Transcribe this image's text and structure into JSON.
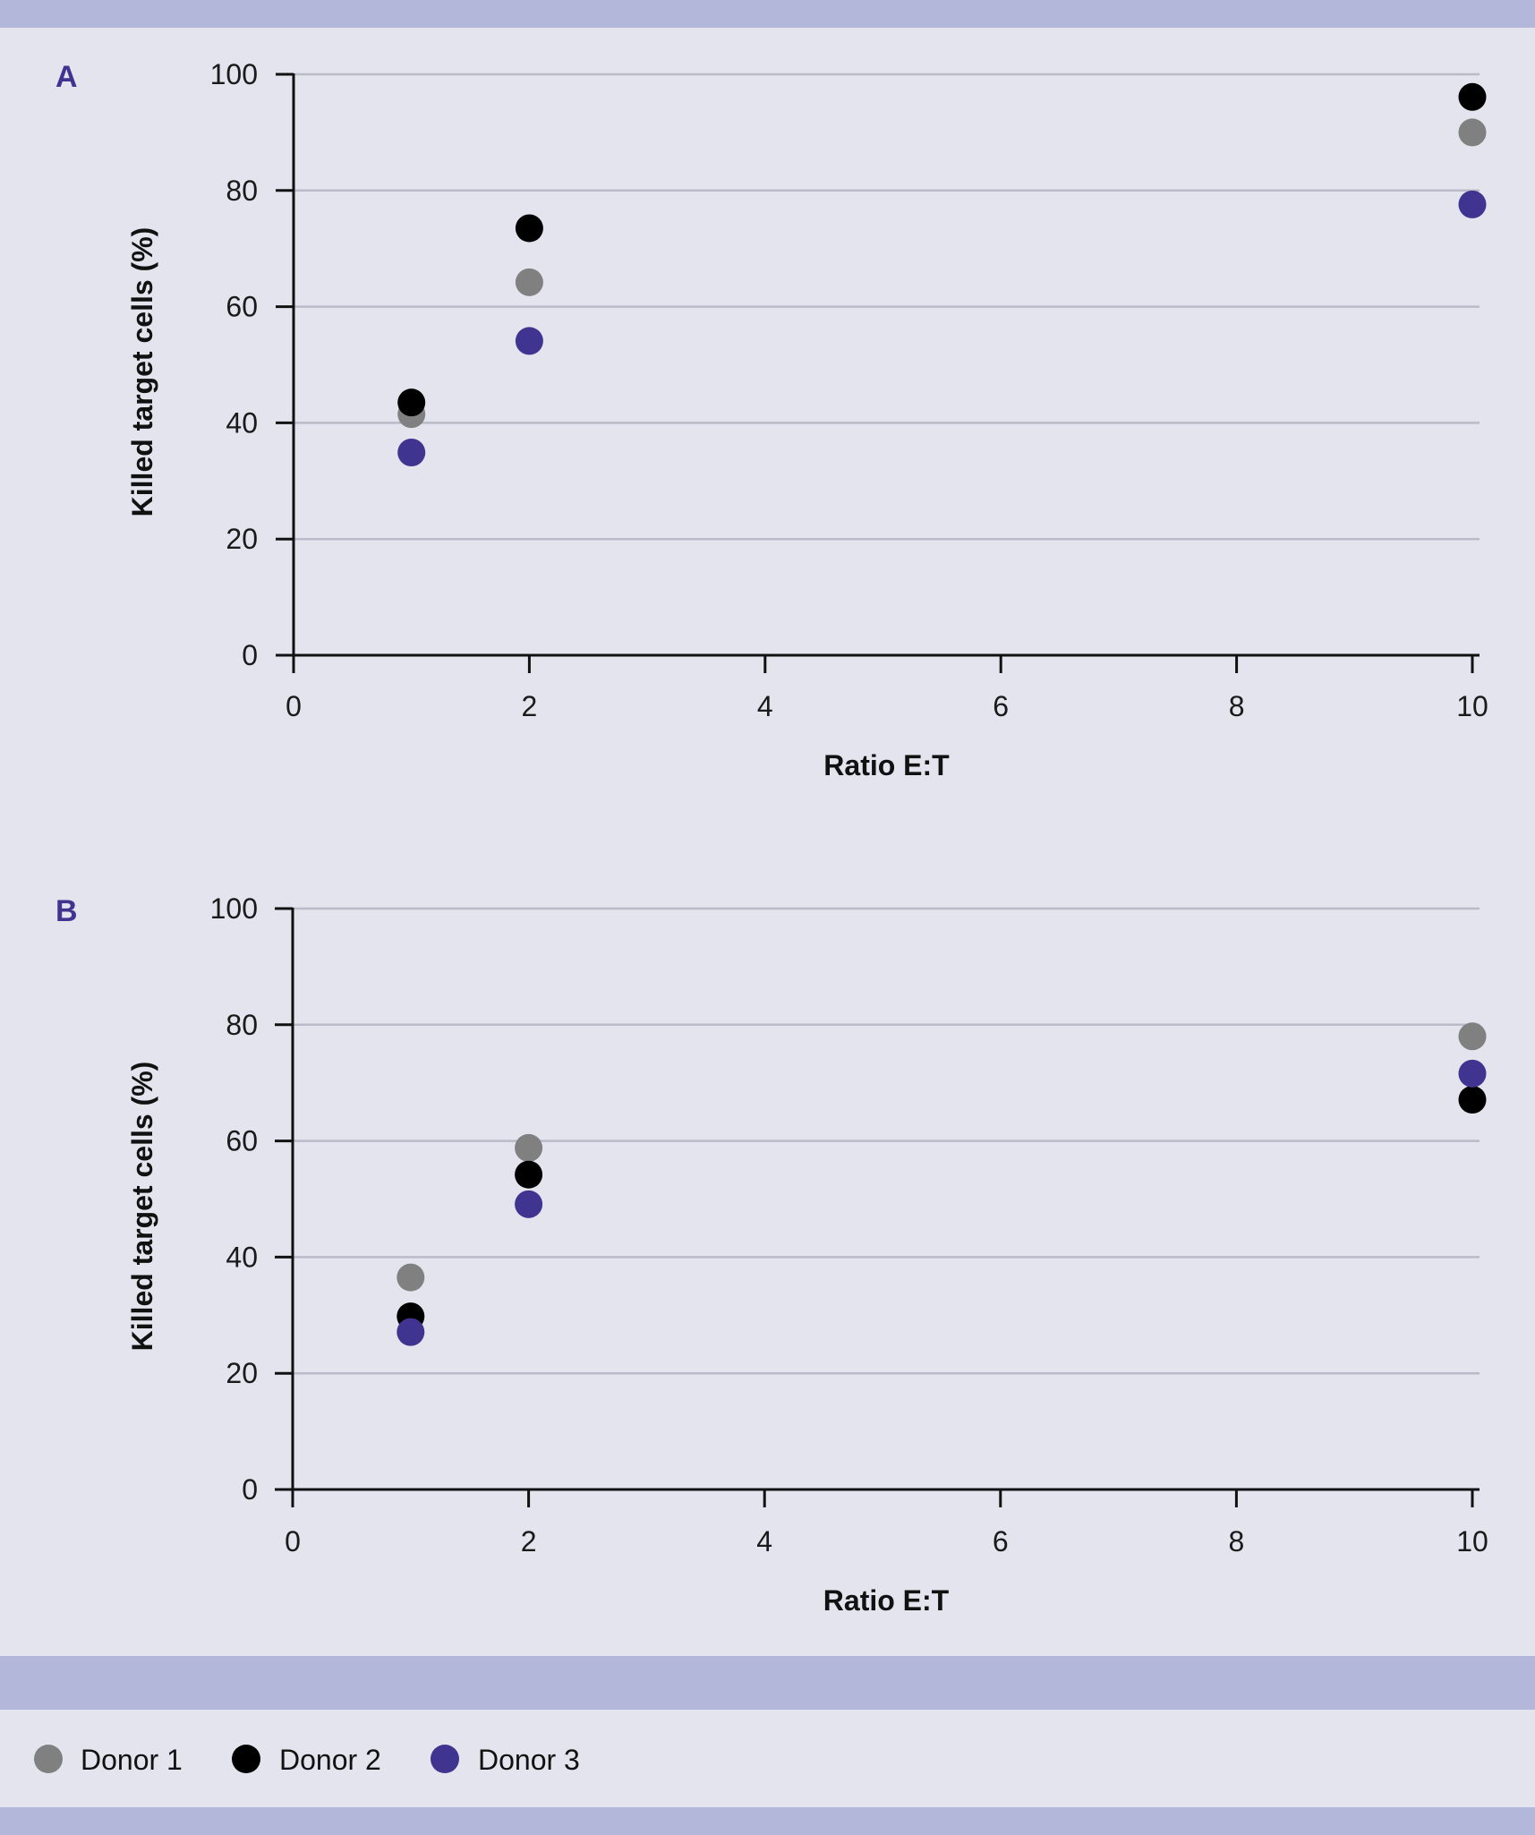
{
  "colors": {
    "page_background": "#e3e4ee",
    "band": "#b3b7da",
    "gridline": "#b9bbc8",
    "axis": "#111111",
    "panel_label": "#3f3591"
  },
  "legend": [
    {
      "label": "Donor 1",
      "color": "#808080"
    },
    {
      "label": "Donor 2",
      "color": "#000000"
    },
    {
      "label": "Donor 3",
      "color": "#3f3591"
    }
  ],
  "chart_data": [
    {
      "type": "scatter",
      "panel_label": "A",
      "xlabel": "Ratio E:T",
      "ylabel": "Killed target cells (%)",
      "xlim": [
        0,
        10
      ],
      "ylim": [
        0,
        100
      ],
      "xticks": [
        "0",
        "2",
        "4",
        "6",
        "8",
        "10"
      ],
      "yticks": [
        "0",
        "20",
        "40",
        "60",
        "80",
        "100"
      ],
      "grid": "horizontal",
      "series": [
        {
          "name": "Donor 1",
          "color": "#808080",
          "x": [
            1,
            2,
            10
          ],
          "y": [
            41.5,
            64.2,
            90.0
          ]
        },
        {
          "name": "Donor 2",
          "color": "#000000",
          "x": [
            1,
            2,
            10
          ],
          "y": [
            43.5,
            73.5,
            96.1
          ]
        },
        {
          "name": "Donor 3",
          "color": "#3f3591",
          "x": [
            1,
            2,
            10
          ],
          "y": [
            34.9,
            54.1,
            77.6
          ]
        }
      ]
    },
    {
      "type": "scatter",
      "panel_label": "B",
      "xlabel": "Ratio E:T",
      "ylabel": "Killed target cells (%)",
      "xlim": [
        0,
        10
      ],
      "ylim": [
        0,
        100
      ],
      "xticks": [
        "0",
        "2",
        "4",
        "6",
        "8",
        "10"
      ],
      "yticks": [
        "0",
        "20",
        "40",
        "60",
        "80",
        "100"
      ],
      "grid": "horizontal",
      "series": [
        {
          "name": "Donor 1",
          "color": "#808080",
          "x": [
            1,
            2,
            10
          ],
          "y": [
            36.5,
            58.8,
            78.0
          ]
        },
        {
          "name": "Donor 2",
          "color": "#000000",
          "x": [
            1,
            2,
            10
          ],
          "y": [
            29.8,
            54.2,
            67.1
          ]
        },
        {
          "name": "Donor 3",
          "color": "#3f3591",
          "x": [
            1,
            2,
            10
          ],
          "y": [
            27.1,
            49.1,
            71.6
          ]
        }
      ]
    }
  ]
}
